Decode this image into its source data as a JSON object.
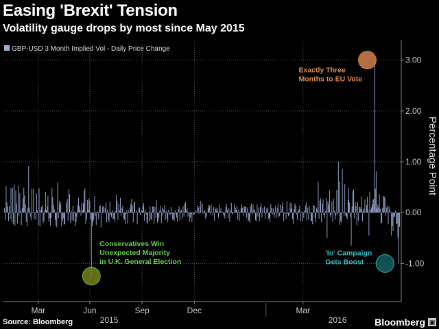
{
  "header": {
    "title": "Easing 'Brexit' Tension",
    "subtitle": "Volatility gauge drops by most since May 2015"
  },
  "footer": {
    "source": "Source: Bloomberg",
    "brand": "Bloomberg"
  },
  "colors": {
    "background": "#000000",
    "bar": "#9fb0d8",
    "grid": "#555555",
    "annotation_orange": "#e08a50",
    "annotation_green": "#66d24a",
    "annotation_teal": "#3dbfc3",
    "circle_orange": "#c87a4a",
    "circle_green": "#6f7a1c",
    "circle_teal": "#14595b"
  },
  "chart_data": {
    "type": "bar",
    "title": "Easing 'Brexit' Tension",
    "subtitle": "Volatility gauge drops by most since May 2015",
    "legend": "GBP-USD 3 Month Implied Vol - Daily Price Change",
    "ylabel": "Percentage Point",
    "ylim": [
      -1.75,
      3.4
    ],
    "yticks": [
      3.0,
      2.0,
      1.0,
      0.0,
      -1.0
    ],
    "ytick_labels": [
      "3.00",
      "2.00",
      "1.00",
      "0.00",
      "-1.00"
    ],
    "x_start": "2015-01-01",
    "x_end": "2016-04-20",
    "month_ticks": [
      "Mar",
      "Jun",
      "Sep",
      "Dec",
      "Mar"
    ],
    "year_labels": [
      "2015",
      "2016"
    ],
    "legend_position": "top-left",
    "annotations": [
      {
        "text": [
          "Conservatives Win",
          "Unexpected Majority",
          "in U.K. General Election"
        ],
        "date_index": 108,
        "y": -1.25,
        "color": "green"
      },
      {
        "text": [
          "Exactly Three",
          "Months to EU Vote"
        ],
        "date_index": 451,
        "y": 3.0,
        "color": "orange"
      },
      {
        "text": [
          "'In' Campaign",
          "Gets Boost"
        ],
        "date_index": 473,
        "y": -1.0,
        "color": "teal"
      }
    ],
    "values": [
      0.09,
      -0.15,
      0.53,
      0.2,
      0.12,
      -0.17,
      0.13,
      -0.13,
      0.49,
      -0.19,
      0.49,
      -0.23,
      0.55,
      -0.26,
      0.44,
      0.18,
      -0.21,
      0.53,
      -0.07,
      0.38,
      0.04,
      -0.24,
      0.09,
      0.28,
      0.49,
      0.34,
      0.16,
      -0.18,
      -0.27,
      0.09,
      0.92,
      0.1,
      -0.08,
      -0.15,
      0.47,
      -0.01,
      0.47,
      -0.13,
      -0.01,
      -0.14,
      0.38,
      0.04,
      -0.25,
      0.48,
      -0.27,
      0.06,
      0.11,
      0.15,
      -0.21,
      -0.17,
      0.06,
      0.41,
      0.05,
      0.12,
      0.33,
      -0.18,
      -0.11,
      -0.26,
      -0.1,
      0.49,
      0.31,
      0.15,
      0.06,
      -0.14,
      -0.25,
      -0.29,
      0.59,
      -0.11,
      0.23,
      0.15,
      0.2,
      -0.27,
      -0.16,
      -0.11,
      -0.23,
      -0.23,
      0.0,
      0.2,
      0.27,
      -0.16,
      0.46,
      0.36,
      -0.2,
      0.03,
      -0.15,
      0.13,
      -0.16,
      0.02,
      -0.26,
      -0.19,
      -0.08,
      0.15,
      0.29,
      0.13,
      0.06,
      -0.06,
      0.2,
      0.05,
      0.18,
      0.43,
      0.48,
      -0.23,
      -0.14,
      0.25,
      0.05,
      0.28,
      0.23,
      -0.13,
      -1.25,
      -0.27,
      -0.19,
      -0.14,
      0.32,
      -0.06,
      -0.24,
      -0.01,
      0.02,
      -0.13,
      0.12,
      0.15,
      -0.29,
      -0.01,
      0.12,
      0.13,
      -0.01,
      0.09,
      0.2,
      -0.19,
      0.06,
      -0.14,
      -0.19,
      0.22,
      -0.05,
      -0.09,
      0.05,
      -0.13,
      -0.12,
      -0.18,
      0.03,
      0.35,
      0.23,
      -0.14,
      0.17,
      0.04,
      0.29,
      -0.06,
      0.09,
      0.14,
      -0.12,
      -0.14,
      -0.22,
      -0.03,
      0.05,
      -0.21,
      0.05,
      -0.01,
      0.08,
      0.17,
      0.27,
      0.14,
      -0.19,
      0.21,
      0.2,
      0.01,
      0.04,
      -0.23,
      -0.01,
      0.1,
      0.1,
      -0.05,
      0.05,
      0.03,
      0.13,
      0.19,
      -0.16,
      0.06,
      -0.04,
      -0.19,
      -0.22,
      -0.01,
      -0.18,
      0.12,
      -0.13,
      -0.15,
      0.12,
      0.12,
      -0.22,
      0.11,
      -0.1,
      0.24,
      -0.2,
      -0.17,
      -0.1,
      0.05,
      0.14,
      -0.2,
      0.1,
      -0.06,
      0.06,
      0.15,
      -0.14,
      0.04,
      -0.12,
      -0.19,
      0.06,
      -0.04,
      -0.05,
      0.11,
      -0.03,
      -0.14,
      -0.13,
      -0.17,
      0.05,
      -0.04,
      -0.1,
      -0.18,
      0.07,
      0.12,
      -0.15,
      0.05,
      0.05,
      -0.13,
      0.13,
      -0.08,
      0.17,
      0.21,
      0.04,
      0.09,
      -0.08,
      0.02,
      -0.18,
      -0.1,
      -0.03,
      -0.19,
      0.0,
      -0.05,
      -0.03,
      -0.01,
      0.05,
      0.0,
      0.14,
      0.1,
      -0.02,
      0.13,
      0.23,
      -0.01,
      0.18,
      -0.02,
      0.04,
      0.04,
      -0.12,
      -0.08,
      0.01,
      0.09,
      0.15,
      0.14,
      -0.03,
      0.16,
      0.0,
      -0.06,
      0.11,
      -0.16,
      0.07,
      0.1,
      0.03,
      0.08,
      -0.1,
      0.16,
      0.03,
      0.09,
      -0.01,
      0.02,
      -0.03,
      -0.07,
      -0.12,
      0.11,
      0.17,
      0.06,
      -0.11,
      0.09,
      -0.18,
      0.05,
      0.19,
      -0.04,
      -0.02,
      0.01,
      0.18,
      0.1,
      0.05,
      0.13,
      -0.14,
      0.06,
      -0.16,
      0.02,
      0.09,
      0.17,
      0.1,
      -0.06,
      0.13,
      0.11,
      0.12,
      -0.1,
      0.1,
      -0.16,
      -0.16,
      -0.2,
      0.12,
      0.18,
      -0.04,
      0.16,
      0.06,
      0.05,
      -0.15,
      -0.17,
      0.16,
      -0.08,
      0.1,
      -0.17,
      0.11,
      0.19,
      -0.1,
      0.09,
      0.0,
      0.12,
      -0.12,
      -0.02,
      0.08,
      0.1,
      -0.13,
      -0.11,
      -0.18,
      0.17,
      0.09,
      -0.04,
      0.09,
      -0.1,
      -0.04,
      0.14,
      -0.1,
      0.09,
      0.17,
      -0.09,
      -0.07,
      0.16,
      -0.01,
      0.13,
      0.21,
      -0.17,
      -0.02,
      -0.01,
      -0.13,
      0.23,
      -0.02,
      -0.07,
      -0.05,
      0.2,
      0.09,
      0.19,
      -0.13,
      -0.22,
      0.07,
      0.18,
      0.14,
      -0.04,
      -0.14,
      0.03,
      0.07,
      0.14,
      -0.17,
      0.01,
      -0.17,
      0.02,
      -0.1,
      0.04,
      0.14,
      0.2,
      -0.16,
      0.1,
      -0.13,
      0.13,
      0.01,
      -0.17,
      -0.16,
      -0.23,
      0.15,
      0.14,
      -0.1,
      -0.19,
      0.1,
      0.06,
      0.61,
      -0.12,
      0.24,
      0.28,
      -0.19,
      0.18,
      0.26,
      -0.05,
      -0.1,
      0.03,
      0.29,
      -0.5,
      0.23,
      0.16,
      0.44,
      -0.09,
      -0.05,
      0.22,
      -0.18,
      0.27,
      0.04,
      -0.14,
      -0.06,
      0.45,
      -0.03,
      1.0,
      0.61,
      -0.24,
      -0.17,
      -0.2,
      0.86,
      0.02,
      -0.06,
      0.56,
      -0.06,
      -0.09,
      -0.13,
      0.25,
      0.49,
      0.2,
      -0.09,
      -0.65,
      0.13,
      0.42,
      0.46,
      -0.12,
      0.21,
      0.13,
      -0.25,
      0.21,
      -0.16,
      0.11,
      0.11,
      0.07,
      0.32,
      -0.17,
      0.08,
      0.04,
      0.26,
      -0.01,
      0.15,
      0.31,
      0.06,
      -0.45,
      0.41,
      0.05,
      0.1,
      0.16,
      0.25,
      0.27,
      3.0,
      0.47,
      0.81,
      0.08,
      0.16,
      0.11,
      0.36,
      0.08,
      -0.21,
      -0.2,
      0.09,
      0.33,
      0.32,
      0.29,
      -0.06,
      0.1,
      0.14,
      -0.23,
      0.12,
      0.06,
      0.0,
      -0.45,
      -0.26,
      -0.36,
      -0.09,
      -0.08,
      0.04,
      -0.22,
      -0.22,
      -0.49,
      -1.0,
      -0.28
    ]
  }
}
